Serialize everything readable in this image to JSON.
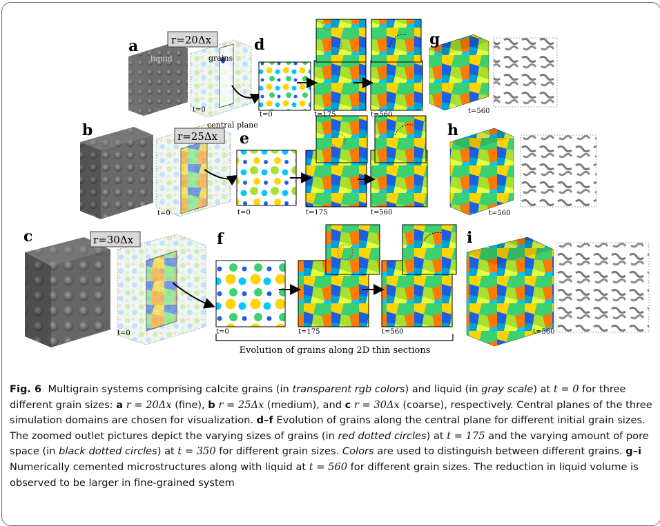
{
  "panels": {
    "a": "a",
    "b": "b",
    "c": "c",
    "d": "d",
    "e": "e",
    "f": "f",
    "g": "g",
    "h": "h",
    "i": "i"
  },
  "radius_labels": {
    "a": "r=20Δx",
    "b": "r=25Δx",
    "c": "r=30Δx"
  },
  "annotations": {
    "liquid": "liquid",
    "grains": "grains",
    "central_plane": "central plane"
  },
  "time_labels": {
    "t0": "t=0",
    "t175": "t=175",
    "t560": "t=560"
  },
  "bracket_label": "Evolution of grains along 2D thin sections",
  "caption": {
    "fig_label": "Fig. 6",
    "s1": "Multigrain systems comprising calcite grains (in ",
    "s1_em": "transparent rgb colors",
    "s2": ") and liquid (in ",
    "s2_em": "gray scale",
    "s3": ") at ",
    "t0": "t = 0",
    "s4": " for three different grain sizes: ",
    "a": "a",
    "ra": "r = 20Δx",
    "s5": " (fine), ",
    "b": "b",
    "rb": "r = 25Δx",
    "s6": " (medium), and ",
    "c": "c",
    "rc": "r = 30Δx",
    "s7": " (coarse), respectively. Central planes of the three simulation domains are chosen for visualization. ",
    "df": "d–f",
    "s8": " Evolution of grains along the central plane for different initial grain sizes. The zoomed outlet pictures depict the varying sizes of grains (in ",
    "s8_em": "red dotted circles",
    "s9": ") at ",
    "t175": "t = 175",
    "s10": " and the varying amount of pore space (in ",
    "s10_em": "black dotted circles",
    "s11": ") at ",
    "t350": "t = 350",
    "s12": " for differ­ent grain sizes. ",
    "s12_em": "Colors",
    "s13": " are used to distinguish between different grains. ",
    "gi": "g–i",
    "s14": " Numerically cemented microstruc­tures along with liquid at ",
    "t560": "t = 560",
    "s15": " for different grain sizes. The reduction in liquid volume is observed to be larger in fine-grained system"
  },
  "colors": {
    "frame": "#6b6b6b",
    "text": "#111111"
  }
}
